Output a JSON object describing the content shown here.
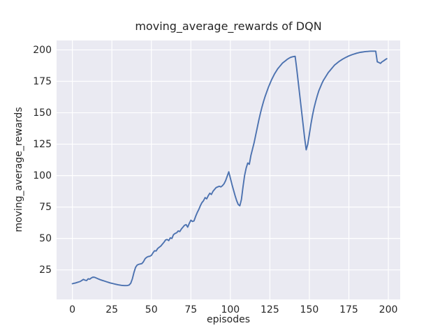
{
  "chart_data": {
    "type": "line",
    "title": "moving_average_rewards of DQN",
    "xlabel": "episodes",
    "ylabel": "moving_average_rewards",
    "x_ticks": [
      0,
      25,
      50,
      75,
      100,
      125,
      150,
      175,
      200
    ],
    "y_ticks": [
      25,
      50,
      75,
      100,
      125,
      150,
      175,
      200
    ],
    "xlim": [
      -10,
      207.5
    ],
    "ylim": [
      1.5,
      207.5
    ],
    "grid": true,
    "legend_position": "none",
    "style": "seaborn-darkgrid",
    "colors": {
      "line": "#4C72B0",
      "plot_background": "#EAEAF2",
      "grid": "#FFFFFF",
      "figure_background": "#FFFFFF",
      "text": "#262626"
    },
    "series": [
      {
        "name": "moving_average_rewards",
        "x_start": 0,
        "x_step": 1,
        "values": [
          14.0,
          14.3,
          14.6,
          15.0,
          15.4,
          15.8,
          16.6,
          17.4,
          16.8,
          16.5,
          17.9,
          17.6,
          18.6,
          19.2,
          19.1,
          18.6,
          18.0,
          17.5,
          17.0,
          16.6,
          16.2,
          15.8,
          15.4,
          15.0,
          14.6,
          14.3,
          14.0,
          13.7,
          13.4,
          13.1,
          12.9,
          12.7,
          12.6,
          12.5,
          12.5,
          12.6,
          13.0,
          14.5,
          18.0,
          23.0,
          27.0,
          28.8,
          29.4,
          29.7,
          30.0,
          31.5,
          33.8,
          35.0,
          35.6,
          35.8,
          36.5,
          38.5,
          40.2,
          40.0,
          42.0,
          43.0,
          44.0,
          45.5,
          47.0,
          48.8,
          49.2,
          48.3,
          50.5,
          50.0,
          53.0,
          54.0,
          54.5,
          56.0,
          55.5,
          57.5,
          59.0,
          60.5,
          61.0,
          59.0,
          62.0,
          64.5,
          63.5,
          64.0,
          67.5,
          70.5,
          73.0,
          76.0,
          78.5,
          80.0,
          82.5,
          81.5,
          84.0,
          86.0,
          85.0,
          87.5,
          89.0,
          90.5,
          91.0,
          91.5,
          91.0,
          92.0,
          93.5,
          96.0,
          99.5,
          103.0,
          98.0,
          93.0,
          88.5,
          84.0,
          80.0,
          77.0,
          76.0,
          81.0,
          91.0,
          100.0,
          106.0,
          110.0,
          109.0,
          116.0,
          121.0,
          126.0,
          132.0,
          138.0,
          144.0,
          149.5,
          154.5,
          159.0,
          163.0,
          166.5,
          170.0,
          173.0,
          176.0,
          178.5,
          181.0,
          183.0,
          185.0,
          186.5,
          188.0,
          189.5,
          190.5,
          191.5,
          192.5,
          193.3,
          194.0,
          194.4,
          194.7,
          194.9,
          185.0,
          174.0,
          163.0,
          152.0,
          141.0,
          130.0,
          120.5,
          125.0,
          133.0,
          141.0,
          148.0,
          154.0,
          159.0,
          163.5,
          167.5,
          170.5,
          173.5,
          176.0,
          178.0,
          180.0,
          182.0,
          183.5,
          185.0,
          186.5,
          188.0,
          189.0,
          190.0,
          191.0,
          191.8,
          192.6,
          193.3,
          194.0,
          194.6,
          195.2,
          195.7,
          196.2,
          196.6,
          197.0,
          197.4,
          197.7,
          198.0,
          198.2,
          198.4,
          198.6,
          198.7,
          198.8,
          198.9,
          199.0,
          199.0,
          199.0,
          199.0,
          190.5,
          190.0,
          189.3,
          190.5,
          191.3,
          192.2,
          193.0
        ]
      }
    ]
  }
}
